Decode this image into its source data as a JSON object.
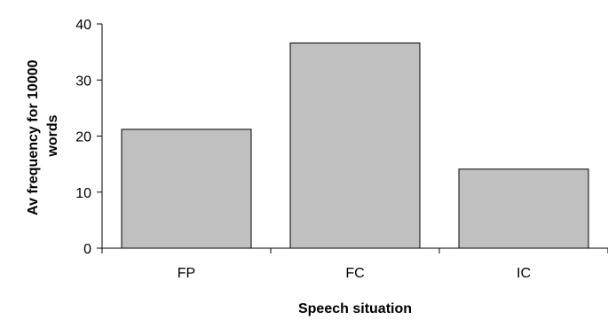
{
  "chart_data": {
    "type": "bar",
    "title": "",
    "xlabel": "Speech situation",
    "ylabel_lines": [
      "Av frequency for 10000",
      "words"
    ],
    "categories": [
      "FP",
      "FC",
      "IC"
    ],
    "values": [
      21.2,
      36.6,
      14.1
    ],
    "ylim": [
      0,
      40
    ],
    "yticks": [
      0,
      10,
      20,
      30,
      40
    ],
    "grid": false,
    "legend": "none",
    "bar_color": "#c0c0c0",
    "bar_edge_color": "#000000"
  }
}
